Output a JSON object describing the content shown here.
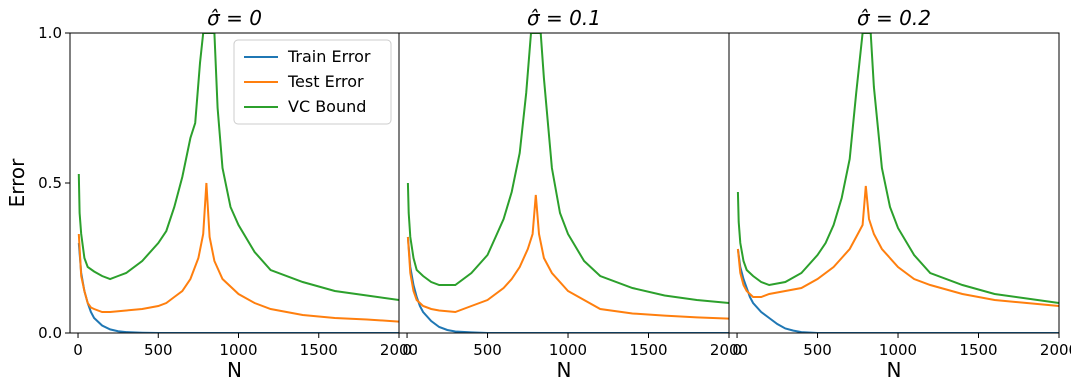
{
  "chart_data": [
    {
      "type": "line",
      "title": "σ̂ = 0",
      "xlabel": "N",
      "ylabel": "Error",
      "xlim": [
        -50,
        2000
      ],
      "ylim": [
        0,
        1.0
      ],
      "xticks": [
        0,
        500,
        1000,
        1500,
        2000
      ],
      "yticks": [
        0.0,
        0.5,
        1.0
      ],
      "ytick_labels": [
        "0.0",
        "0.5",
        "1.0"
      ],
      "legend": {
        "placement": "top-right",
        "entries": [
          "Train Error",
          "Test Error",
          "VC Bound"
        ]
      },
      "grid": false,
      "colors": {
        "train": "#1f77b4",
        "test": "#ff7f0e",
        "vc": "#2ca02c"
      },
      "series": [
        {
          "name": "Train Error",
          "x": [
            5,
            20,
            40,
            60,
            80,
            100,
            150,
            200,
            250,
            300,
            400,
            500,
            700,
            1000,
            1500,
            2000
          ],
          "values": [
            0.3,
            0.2,
            0.14,
            0.1,
            0.07,
            0.05,
            0.025,
            0.012,
            0.006,
            0.003,
            0.001,
            0.0,
            0.0,
            0.0,
            0.0,
            0.0
          ]
        },
        {
          "name": "Test Error",
          "x": [
            5,
            20,
            40,
            60,
            80,
            100,
            150,
            200,
            300,
            400,
            500,
            550,
            600,
            650,
            700,
            750,
            780,
            800,
            820,
            850,
            900,
            1000,
            1100,
            1200,
            1400,
            1600,
            1800,
            2000
          ],
          "values": [
            0.33,
            0.19,
            0.14,
            0.1,
            0.085,
            0.08,
            0.07,
            0.07,
            0.075,
            0.08,
            0.09,
            0.1,
            0.12,
            0.14,
            0.18,
            0.25,
            0.33,
            0.5,
            0.32,
            0.24,
            0.18,
            0.13,
            0.1,
            0.08,
            0.06,
            0.05,
            0.045,
            0.038
          ]
        },
        {
          "name": "VC Bound",
          "x": [
            5,
            10,
            20,
            40,
            60,
            100,
            150,
            200,
            250,
            300,
            400,
            500,
            550,
            600,
            650,
            700,
            730,
            760,
            780,
            850,
            870,
            900,
            950,
            1000,
            1100,
            1200,
            1400,
            1600,
            1800,
            2000
          ],
          "values": [
            0.53,
            0.4,
            0.33,
            0.25,
            0.22,
            0.205,
            0.19,
            0.18,
            0.19,
            0.2,
            0.24,
            0.3,
            0.34,
            0.42,
            0.52,
            0.65,
            0.7,
            0.9,
            1.0,
            1.0,
            0.75,
            0.55,
            0.42,
            0.36,
            0.27,
            0.21,
            0.17,
            0.14,
            0.125,
            0.11
          ]
        }
      ]
    },
    {
      "type": "line",
      "title": "σ̂ = 0.1",
      "xlabel": "N",
      "ylabel": "",
      "xlim": [
        -50,
        2000
      ],
      "ylim": [
        0,
        1.0
      ],
      "xticks": [
        0,
        500,
        1000,
        1500,
        2000
      ],
      "series": [
        {
          "name": "Train Error",
          "x": [
            5,
            20,
            40,
            60,
            80,
            100,
            150,
            200,
            250,
            300,
            400,
            500,
            700,
            1000,
            1500,
            2000
          ],
          "values": [
            0.32,
            0.22,
            0.16,
            0.12,
            0.09,
            0.07,
            0.04,
            0.02,
            0.01,
            0.005,
            0.002,
            0.0,
            0.0,
            0.0,
            0.0,
            0.0
          ]
        },
        {
          "name": "Test Error",
          "x": [
            5,
            20,
            40,
            60,
            80,
            100,
            150,
            200,
            300,
            400,
            500,
            600,
            650,
            700,
            750,
            780,
            800,
            820,
            850,
            900,
            1000,
            1100,
            1200,
            1400,
            1600,
            1800,
            2000
          ],
          "values": [
            0.32,
            0.2,
            0.14,
            0.11,
            0.1,
            0.09,
            0.08,
            0.075,
            0.07,
            0.09,
            0.11,
            0.15,
            0.18,
            0.22,
            0.28,
            0.33,
            0.46,
            0.33,
            0.25,
            0.2,
            0.14,
            0.11,
            0.08,
            0.065,
            0.058,
            0.052,
            0.048
          ]
        },
        {
          "name": "VC Bound",
          "x": [
            5,
            10,
            20,
            40,
            60,
            100,
            150,
            200,
            300,
            400,
            500,
            550,
            600,
            650,
            700,
            740,
            770,
            830,
            850,
            900,
            950,
            1000,
            1100,
            1200,
            1400,
            1600,
            1800,
            2000
          ],
          "values": [
            0.5,
            0.4,
            0.32,
            0.25,
            0.21,
            0.19,
            0.17,
            0.16,
            0.16,
            0.2,
            0.26,
            0.32,
            0.38,
            0.47,
            0.6,
            0.8,
            1.0,
            1.0,
            0.85,
            0.55,
            0.4,
            0.33,
            0.24,
            0.19,
            0.15,
            0.125,
            0.11,
            0.1
          ]
        }
      ]
    },
    {
      "type": "line",
      "title": "σ̂ = 0.2",
      "xlabel": "N",
      "ylabel": "",
      "xlim": [
        -50,
        2000
      ],
      "ylim": [
        0,
        1.0
      ],
      "xticks": [
        0,
        500,
        1000,
        1500,
        2000
      ],
      "series": [
        {
          "name": "Train Error",
          "x": [
            5,
            20,
            40,
            60,
            80,
            100,
            150,
            200,
            250,
            300,
            350,
            400,
            500,
            700,
            1000,
            1500,
            2000
          ],
          "values": [
            0.28,
            0.22,
            0.18,
            0.15,
            0.12,
            0.1,
            0.07,
            0.05,
            0.03,
            0.015,
            0.008,
            0.003,
            0.0,
            0.0,
            0.0,
            0.0,
            0.0
          ]
        },
        {
          "name": "Test Error",
          "x": [
            5,
            20,
            40,
            60,
            80,
            100,
            150,
            200,
            300,
            400,
            500,
            600,
            650,
            700,
            750,
            780,
            800,
            820,
            850,
            900,
            1000,
            1100,
            1200,
            1400,
            1600,
            1800,
            2000
          ],
          "values": [
            0.28,
            0.2,
            0.16,
            0.14,
            0.13,
            0.12,
            0.12,
            0.13,
            0.14,
            0.15,
            0.18,
            0.22,
            0.25,
            0.28,
            0.33,
            0.36,
            0.49,
            0.38,
            0.33,
            0.28,
            0.22,
            0.18,
            0.16,
            0.13,
            0.11,
            0.1,
            0.09
          ]
        },
        {
          "name": "VC Bound",
          "x": [
            5,
            10,
            20,
            40,
            60,
            100,
            150,
            200,
            300,
            400,
            500,
            550,
            600,
            650,
            700,
            740,
            780,
            830,
            850,
            900,
            950,
            1000,
            1100,
            1200,
            1400,
            1600,
            1800,
            2000
          ],
          "values": [
            0.47,
            0.37,
            0.3,
            0.24,
            0.21,
            0.19,
            0.17,
            0.16,
            0.17,
            0.2,
            0.26,
            0.3,
            0.36,
            0.45,
            0.58,
            0.8,
            1.0,
            1.0,
            0.82,
            0.55,
            0.42,
            0.35,
            0.26,
            0.2,
            0.16,
            0.13,
            0.115,
            0.1
          ]
        }
      ]
    }
  ]
}
